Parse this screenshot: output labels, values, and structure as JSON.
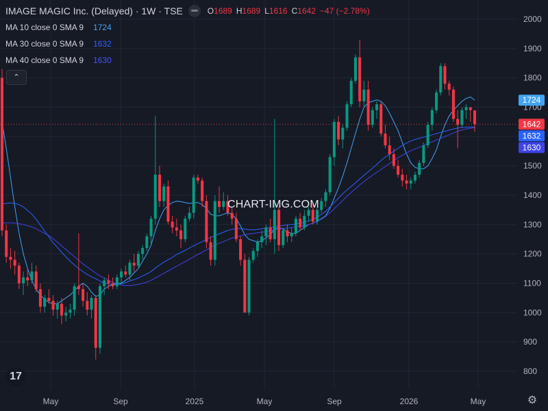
{
  "header": {
    "title": "IMAGE MAGIC Inc. (Delayed) · 1W · TSE",
    "ohlc": {
      "o_label": "O",
      "o": "1689",
      "h_label": "H",
      "h": "1689",
      "l_label": "L",
      "l": "1616",
      "c_label": "C",
      "c": "1642",
      "change": "−47 (−2.78%)"
    }
  },
  "indicators": [
    {
      "label": "MA 10 close 0 SMA 9",
      "value": "1724",
      "color": "#42a5f5"
    },
    {
      "label": "MA 30 close 0 SMA 9",
      "value": "1632",
      "color": "#2962ff"
    },
    {
      "label": "MA 40 close 0 SMA 9",
      "value": "1630",
      "color": "#3f43e8"
    }
  ],
  "collapse_icon": "chevron-up-icon",
  "watermark": "CHART-IMG.COM",
  "logo_text": "17",
  "colors": {
    "background": "#161a25",
    "grid": "#232733",
    "up": "#089981",
    "down": "#f23645",
    "text": "#b2b5be"
  },
  "chart_data": {
    "type": "candlestick",
    "interval": "1W",
    "x_tick_labels": [
      "May",
      "Sep",
      "2025",
      "May",
      "Sep",
      "2026",
      "May"
    ],
    "y_tick_labels": [
      "800",
      "900",
      "1000",
      "1100",
      "1200",
      "1300",
      "1400",
      "1500",
      "1600",
      "1700",
      "1800",
      "1900",
      "2000"
    ],
    "ylim": [
      740,
      2020
    ],
    "last_price": 1642,
    "price_labels": [
      {
        "value": "1724",
        "color": "#42a5f5"
      },
      {
        "value": "1642",
        "color": "#f23645"
      },
      {
        "value": "1632",
        "color": "#2962ff"
      },
      {
        "value": "1630",
        "color": "#3f43e8"
      }
    ],
    "candles": [
      [
        1800,
        1830,
        1260,
        1280
      ],
      [
        1280,
        1300,
        1170,
        1190
      ],
      [
        1190,
        1220,
        1150,
        1180
      ],
      [
        1180,
        1210,
        1130,
        1160
      ],
      [
        1160,
        1170,
        1080,
        1100
      ],
      [
        1100,
        1140,
        1060,
        1120
      ],
      [
        1120,
        1150,
        1090,
        1110
      ],
      [
        1110,
        1170,
        1100,
        1140
      ],
      [
        1140,
        1160,
        1070,
        1080
      ],
      [
        1080,
        1100,
        1000,
        1020
      ],
      [
        1020,
        1060,
        1000,
        1050
      ],
      [
        1050,
        1080,
        1030,
        1040
      ],
      [
        1040,
        1060,
        990,
        1010
      ],
      [
        1010,
        1040,
        980,
        1030
      ],
      [
        1030,
        1050,
        960,
        990
      ],
      [
        990,
        1020,
        970,
        1000
      ],
      [
        1000,
        1030,
        980,
        1010
      ],
      [
        1010,
        1100,
        990,
        1090
      ],
      [
        1090,
        1270,
        1060,
        1080
      ],
      [
        1080,
        1100,
        1020,
        1040
      ],
      [
        1040,
        1070,
        990,
        1010
      ],
      [
        1010,
        1060,
        980,
        1050
      ],
      [
        1050,
        1060,
        840,
        880
      ],
      [
        880,
        1100,
        860,
        1090
      ],
      [
        1090,
        1120,
        1060,
        1110
      ],
      [
        1110,
        1130,
        1080,
        1100
      ],
      [
        1100,
        1120,
        1080,
        1090
      ],
      [
        1090,
        1130,
        1080,
        1120
      ],
      [
        1120,
        1150,
        1100,
        1140
      ],
      [
        1140,
        1160,
        1120,
        1130
      ],
      [
        1130,
        1180,
        1110,
        1170
      ],
      [
        1170,
        1200,
        1140,
        1160
      ],
      [
        1160,
        1210,
        1150,
        1200
      ],
      [
        1200,
        1230,
        1180,
        1220
      ],
      [
        1220,
        1270,
        1210,
        1260
      ],
      [
        1260,
        1330,
        1230,
        1320
      ],
      [
        1320,
        1670,
        1300,
        1470
      ],
      [
        1470,
        1500,
        1360,
        1380
      ],
      [
        1380,
        1440,
        1360,
        1430
      ],
      [
        1430,
        1450,
        1300,
        1310
      ],
      [
        1310,
        1330,
        1270,
        1290
      ],
      [
        1290,
        1320,
        1260,
        1280
      ],
      [
        1280,
        1300,
        1220,
        1250
      ],
      [
        1250,
        1330,
        1240,
        1320
      ],
      [
        1320,
        1360,
        1310,
        1340
      ],
      [
        1340,
        1470,
        1320,
        1460
      ],
      [
        1460,
        1470,
        1440,
        1450
      ],
      [
        1450,
        1460,
        1360,
        1380
      ],
      [
        1380,
        1400,
        1220,
        1240
      ],
      [
        1240,
        1260,
        1160,
        1180
      ],
      [
        1180,
        1400,
        1160,
        1380
      ],
      [
        1380,
        1430,
        1340,
        1360
      ],
      [
        1360,
        1410,
        1350,
        1380
      ],
      [
        1380,
        1400,
        1330,
        1340
      ],
      [
        1340,
        1360,
        1300,
        1320
      ],
      [
        1320,
        1340,
        1240,
        1250
      ],
      [
        1250,
        1260,
        1160,
        1180
      ],
      [
        1180,
        1200,
        1000,
        1000
      ],
      [
        1000,
        1190,
        990,
        1180
      ],
      [
        1180,
        1220,
        1170,
        1210
      ],
      [
        1210,
        1250,
        1190,
        1240
      ],
      [
        1240,
        1280,
        1220,
        1260
      ],
      [
        1260,
        1300,
        1230,
        1290
      ],
      [
        1290,
        1320,
        1240,
        1250
      ],
      [
        1250,
        1660,
        1200,
        1350
      ],
      [
        1350,
        1360,
        1210,
        1230
      ],
      [
        1230,
        1290,
        1220,
        1280
      ],
      [
        1280,
        1300,
        1240,
        1260
      ],
      [
        1260,
        1290,
        1240,
        1270
      ],
      [
        1270,
        1330,
        1260,
        1320
      ],
      [
        1320,
        1340,
        1280,
        1290
      ],
      [
        1290,
        1350,
        1280,
        1330
      ],
      [
        1330,
        1360,
        1310,
        1350
      ],
      [
        1350,
        1370,
        1300,
        1310
      ],
      [
        1310,
        1360,
        1300,
        1350
      ],
      [
        1350,
        1390,
        1340,
        1380
      ],
      [
        1380,
        1420,
        1360,
        1410
      ],
      [
        1410,
        1540,
        1400,
        1530
      ],
      [
        1530,
        1660,
        1500,
        1650
      ],
      [
        1650,
        1670,
        1570,
        1590
      ],
      [
        1590,
        1640,
        1560,
        1630
      ],
      [
        1630,
        1720,
        1620,
        1710
      ],
      [
        1710,
        1800,
        1700,
        1790
      ],
      [
        1790,
        1880,
        1780,
        1870
      ],
      [
        1870,
        1930,
        1700,
        1720
      ],
      [
        1720,
        1790,
        1700,
        1760
      ],
      [
        1760,
        1790,
        1620,
        1640
      ],
      [
        1640,
        1700,
        1630,
        1690
      ],
      [
        1690,
        1720,
        1660,
        1710
      ],
      [
        1710,
        1720,
        1600,
        1610
      ],
      [
        1610,
        1640,
        1560,
        1570
      ],
      [
        1570,
        1600,
        1520,
        1540
      ],
      [
        1540,
        1560,
        1490,
        1500
      ],
      [
        1500,
        1520,
        1460,
        1470
      ],
      [
        1470,
        1490,
        1430,
        1450
      ],
      [
        1450,
        1470,
        1420,
        1440
      ],
      [
        1440,
        1460,
        1420,
        1450
      ],
      [
        1450,
        1480,
        1440,
        1470
      ],
      [
        1470,
        1520,
        1460,
        1510
      ],
      [
        1510,
        1580,
        1500,
        1570
      ],
      [
        1570,
        1650,
        1560,
        1640
      ],
      [
        1640,
        1700,
        1620,
        1690
      ],
      [
        1690,
        1760,
        1680,
        1750
      ],
      [
        1750,
        1850,
        1740,
        1840
      ],
      [
        1840,
        1850,
        1760,
        1780
      ],
      [
        1780,
        1790,
        1740,
        1760
      ],
      [
        1760,
        1770,
        1650,
        1660
      ],
      [
        1660,
        1690,
        1560,
        1640
      ],
      [
        1640,
        1700,
        1630,
        1690
      ],
      [
        1690,
        1710,
        1660,
        1700
      ],
      [
        1700,
        1700,
        1650,
        1690
      ],
      [
        1689,
        1689,
        1616,
        1642
      ]
    ],
    "ma_lines": [
      {
        "name": "MA 10",
        "color": "#42a5f5",
        "values": [
          1650,
          1560,
          1460,
          1360,
          1270,
          1200,
          1150,
          1110,
          1080,
          1060,
          1045,
          1035,
          1030,
          1030,
          1040,
          1050,
          1060,
          1075,
          1090,
          1100,
          1090,
          1070,
          1055,
          1060,
          1080,
          1090,
          1095,
          1100,
          1100,
          1110,
          1120,
          1135,
          1150,
          1175,
          1200,
          1230,
          1280,
          1320,
          1350,
          1365,
          1375,
          1380,
          1378,
          1375,
          1372,
          1375,
          1375,
          1368,
          1355,
          1335,
          1330,
          1330,
          1335,
          1340,
          1335,
          1320,
          1295,
          1265,
          1250,
          1245,
          1240,
          1245,
          1255,
          1265,
          1285,
          1290,
          1285,
          1275,
          1270,
          1270,
          1280,
          1290,
          1300,
          1305,
          1310,
          1320,
          1330,
          1355,
          1390,
          1425,
          1465,
          1510,
          1560,
          1610,
          1660,
          1700,
          1715,
          1720,
          1725,
          1720,
          1705,
          1680,
          1650,
          1620,
          1580,
          1540,
          1510,
          1495,
          1490,
          1490,
          1500,
          1525,
          1555,
          1600,
          1640,
          1670,
          1690,
          1705,
          1720,
          1730,
          1735,
          1724
        ]
      },
      {
        "name": "MA 30",
        "color": "#2962ff",
        "values": [
          1370,
          1372,
          1374,
          1372,
          1368,
          1360,
          1348,
          1335,
          1318,
          1298,
          1278,
          1258,
          1238,
          1222,
          1205,
          1190,
          1175,
          1162,
          1150,
          1140,
          1130,
          1122,
          1115,
          1108,
          1100,
          1098,
          1096,
          1095,
          1098,
          1102,
          1108,
          1112,
          1118,
          1125,
          1132,
          1140,
          1152,
          1162,
          1172,
          1180,
          1188,
          1198,
          1205,
          1212,
          1220,
          1228,
          1235,
          1242,
          1250,
          1256,
          1262,
          1268,
          1274,
          1280,
          1284,
          1286,
          1286,
          1285,
          1282,
          1282,
          1284,
          1286,
          1288,
          1290,
          1292,
          1295,
          1297,
          1299,
          1300,
          1302,
          1305,
          1308,
          1312,
          1318,
          1325,
          1335,
          1345,
          1360,
          1375,
          1390,
          1405,
          1418,
          1430,
          1442,
          1455,
          1468,
          1480,
          1492,
          1505,
          1518,
          1530,
          1540,
          1550,
          1560,
          1570,
          1578,
          1585,
          1590,
          1594,
          1598,
          1602,
          1606,
          1610,
          1614,
          1618,
          1622,
          1626,
          1629,
          1631,
          1632,
          1632,
          1632
        ]
      },
      {
        "name": "MA 40",
        "color": "#3f43e8",
        "values": [
          1305,
          1306,
          1306,
          1305,
          1303,
          1300,
          1296,
          1292,
          1286,
          1278,
          1270,
          1262,
          1252,
          1240,
          1228,
          1215,
          1202,
          1190,
          1178,
          1166,
          1155,
          1145,
          1135,
          1125,
          1118,
          1110,
          1103,
          1098,
          1094,
          1092,
          1092,
          1094,
          1096,
          1100,
          1104,
          1110,
          1118,
          1126,
          1134,
          1142,
          1150,
          1158,
          1166,
          1174,
          1182,
          1190,
          1198,
          1206,
          1214,
          1222,
          1230,
          1236,
          1242,
          1248,
          1254,
          1258,
          1262,
          1265,
          1268,
          1270,
          1272,
          1274,
          1276,
          1279,
          1282,
          1284,
          1286,
          1288,
          1290,
          1292,
          1294,
          1297,
          1300,
          1304,
          1310,
          1318,
          1328,
          1340,
          1354,
          1368,
          1382,
          1396,
          1410,
          1422,
          1435,
          1447,
          1458,
          1468,
          1478,
          1488,
          1498,
          1508,
          1518,
          1528,
          1536,
          1544,
          1552,
          1558,
          1564,
          1570,
          1576,
          1582,
          1588,
          1594,
          1600,
          1606,
          1612,
          1618,
          1622,
          1626,
          1628,
          1630
        ]
      }
    ]
  }
}
